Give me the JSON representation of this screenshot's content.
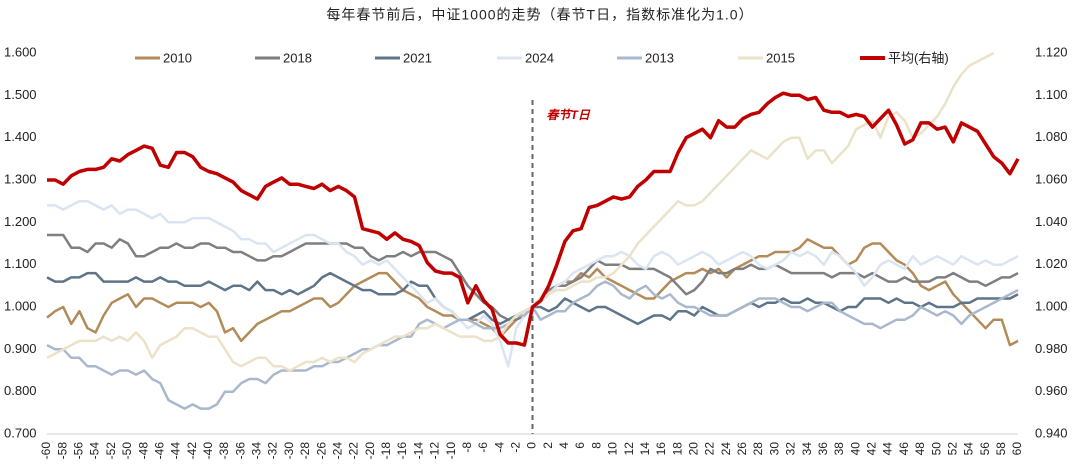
{
  "chart_data": {
    "type": "line",
    "title": "每年春节前后，中证1000的走势（春节T日，指数标准化为1.0）",
    "annotation": {
      "text": "春节T日",
      "x": 0
    },
    "x": [
      -60,
      -59,
      -58,
      -57,
      -56,
      -55,
      -54,
      -53,
      -52,
      -51,
      -50,
      -49,
      -48,
      -47,
      -46,
      -45,
      -44,
      -43,
      -42,
      -41,
      -40,
      -39,
      -38,
      -37,
      -36,
      -35,
      -34,
      -33,
      -32,
      -31,
      -30,
      -29,
      -28,
      -27,
      -26,
      -25,
      -24,
      -23,
      -22,
      -21,
      -20,
      -19,
      -18,
      -17,
      -16,
      -15,
      -14,
      -13,
      -12,
      -11,
      -10,
      -9,
      -8,
      -7,
      -6,
      -5,
      -4,
      -3,
      -2,
      -1,
      0,
      1,
      2,
      3,
      4,
      5,
      6,
      7,
      8,
      9,
      10,
      11,
      12,
      13,
      14,
      15,
      16,
      17,
      18,
      19,
      20,
      21,
      22,
      23,
      24,
      25,
      26,
      27,
      28,
      29,
      30,
      31,
      32,
      33,
      34,
      35,
      36,
      37,
      38,
      39,
      40,
      41,
      42,
      43,
      44,
      45,
      46,
      47,
      48,
      49,
      50,
      51,
      52,
      53,
      54,
      55,
      56,
      57,
      58,
      59,
      60
    ],
    "xlim": [
      -60,
      60
    ],
    "xticks": [
      -60,
      -58,
      -56,
      -54,
      -52,
      -50,
      -48,
      -46,
      -44,
      -42,
      -40,
      -38,
      -36,
      -34,
      -32,
      -30,
      -28,
      -26,
      -24,
      -22,
      -20,
      -18,
      -16,
      -14,
      -12,
      -10,
      -8,
      -6,
      -4,
      -2,
      0,
      2,
      4,
      6,
      8,
      10,
      12,
      14,
      16,
      18,
      20,
      22,
      24,
      26,
      28,
      30,
      32,
      34,
      36,
      38,
      40,
      42,
      44,
      46,
      48,
      50,
      52,
      54,
      56,
      58,
      60
    ],
    "ylim": [
      0.7,
      1.6
    ],
    "yticks": [
      {
        "value": 0.7,
        "label": "0.700"
      },
      {
        "value": 0.8,
        "label": "0.800"
      },
      {
        "value": 0.9,
        "label": "0.900"
      },
      {
        "value": 1.0,
        "label": "1.000"
      },
      {
        "value": 1.1,
        "label": "1.100"
      },
      {
        "value": 1.2,
        "label": "1.200"
      },
      {
        "value": 1.3,
        "label": "1.300"
      },
      {
        "value": 1.4,
        "label": "1.400"
      },
      {
        "value": 1.5,
        "label": "1.500"
      },
      {
        "value": 1.6,
        "label": "1.600"
      }
    ],
    "y2lim": [
      0.94,
      1.12
    ],
    "y2ticks": [
      {
        "value": 0.94,
        "label": "0.940"
      },
      {
        "value": 0.96,
        "label": "0.960"
      },
      {
        "value": 0.98,
        "label": "0.980"
      },
      {
        "value": 1.0,
        "label": "1.000"
      },
      {
        "value": 1.02,
        "label": "1.020"
      },
      {
        "value": 1.04,
        "label": "1.040"
      },
      {
        "value": 1.06,
        "label": "1.060"
      },
      {
        "value": 1.08,
        "label": "1.080"
      },
      {
        "value": 1.1,
        "label": "1.100"
      },
      {
        "value": 1.12,
        "label": "1.120"
      }
    ],
    "grid": false,
    "legend": "top",
    "series": [
      {
        "name": "2010",
        "color": "#b38b59",
        "values": [
          0.975,
          0.99,
          1.0,
          0.96,
          0.99,
          0.95,
          0.94,
          0.98,
          1.01,
          1.02,
          1.03,
          1.0,
          1.02,
          1.02,
          1.01,
          1.0,
          1.01,
          1.01,
          1.01,
          1.0,
          1.01,
          0.99,
          0.94,
          0.95,
          0.92,
          0.94,
          0.96,
          0.97,
          0.98,
          0.99,
          0.99,
          1.0,
          1.01,
          1.02,
          1.02,
          1.0,
          1.01,
          1.03,
          1.05,
          1.06,
          1.07,
          1.08,
          1.08,
          1.06,
          1.04,
          1.03,
          1.02,
          1.0,
          0.99,
          0.98,
          0.98,
          0.97,
          0.97,
          0.97,
          0.96,
          0.95,
          0.93,
          0.95,
          0.97,
          0.98,
          1.0,
          1.02,
          1.03,
          1.05,
          1.06,
          1.06,
          1.08,
          1.07,
          1.09,
          1.07,
          1.06,
          1.05,
          1.04,
          1.03,
          1.02,
          1.02,
          1.04,
          1.06,
          1.07,
          1.08,
          1.08,
          1.09,
          1.08,
          1.09,
          1.07,
          1.09,
          1.1,
          1.11,
          1.12,
          1.12,
          1.13,
          1.13,
          1.13,
          1.14,
          1.16,
          1.15,
          1.14,
          1.14,
          1.12,
          1.1,
          1.11,
          1.14,
          1.15,
          1.15,
          1.13,
          1.11,
          1.1,
          1.08,
          1.05,
          1.04,
          1.05,
          1.06,
          1.03,
          1.01,
          0.99,
          0.97,
          0.95,
          0.97,
          0.97,
          0.91,
          0.92
        ]
      },
      {
        "name": "2018",
        "color": "#7f7f7f",
        "values": [
          1.17,
          1.17,
          1.17,
          1.14,
          1.14,
          1.13,
          1.15,
          1.15,
          1.14,
          1.16,
          1.15,
          1.12,
          1.12,
          1.13,
          1.14,
          1.14,
          1.15,
          1.14,
          1.14,
          1.15,
          1.15,
          1.14,
          1.14,
          1.13,
          1.13,
          1.12,
          1.11,
          1.11,
          1.12,
          1.12,
          1.13,
          1.14,
          1.15,
          1.15,
          1.15,
          1.15,
          1.15,
          1.15,
          1.14,
          1.14,
          1.12,
          1.11,
          1.12,
          1.12,
          1.13,
          1.12,
          1.13,
          1.13,
          1.13,
          1.12,
          1.11,
          1.08,
          1.05,
          1.03,
          1.01,
          1.0,
          0.98,
          0.97,
          0.97,
          0.98,
          1.0,
          1.02,
          1.04,
          1.05,
          1.05,
          1.06,
          1.07,
          1.09,
          1.11,
          1.1,
          1.1,
          1.1,
          1.09,
          1.09,
          1.09,
          1.09,
          1.08,
          1.07,
          1.05,
          1.03,
          1.04,
          1.06,
          1.09,
          1.08,
          1.08,
          1.09,
          1.09,
          1.1,
          1.09,
          1.09,
          1.1,
          1.09,
          1.08,
          1.08,
          1.08,
          1.08,
          1.08,
          1.07,
          1.08,
          1.08,
          1.08,
          1.07,
          1.08,
          1.07,
          1.06,
          1.06,
          1.07,
          1.06,
          1.06,
          1.06,
          1.07,
          1.07,
          1.08,
          1.07,
          1.06,
          1.06,
          1.05,
          1.06,
          1.07,
          1.07,
          1.08
        ]
      },
      {
        "name": "2021",
        "color": "#5d7489",
        "values": [
          1.07,
          1.06,
          1.06,
          1.07,
          1.07,
          1.08,
          1.08,
          1.06,
          1.06,
          1.06,
          1.06,
          1.07,
          1.06,
          1.06,
          1.07,
          1.06,
          1.06,
          1.05,
          1.05,
          1.05,
          1.06,
          1.05,
          1.04,
          1.05,
          1.05,
          1.04,
          1.06,
          1.04,
          1.04,
          1.03,
          1.04,
          1.03,
          1.04,
          1.05,
          1.07,
          1.08,
          1.07,
          1.06,
          1.05,
          1.04,
          1.04,
          1.03,
          1.03,
          1.03,
          1.04,
          1.06,
          1.05,
          1.05,
          1.02,
          1.0,
          0.99,
          0.97,
          0.97,
          0.98,
          0.99,
          0.97,
          0.96,
          0.97,
          0.98,
          0.99,
          1.0,
          1.0,
          0.99,
          1.0,
          1.02,
          1.01,
          1.0,
          0.99,
          1.0,
          1.0,
          0.99,
          0.98,
          0.97,
          0.96,
          0.97,
          0.98,
          0.98,
          0.97,
          0.99,
          0.99,
          0.98,
          1.0,
          0.99,
          0.98,
          0.98,
          0.99,
          1.0,
          1.01,
          1.0,
          1.01,
          1.01,
          1.02,
          1.01,
          1.01,
          1.02,
          1.01,
          1.01,
          1.0,
          0.99,
          1.0,
          1.0,
          1.02,
          1.02,
          1.02,
          1.01,
          1.02,
          1.01,
          1.01,
          1.0,
          1.01,
          1.0,
          1.0,
          1.0,
          1.01,
          1.01,
          1.02,
          1.02,
          1.02,
          1.02,
          1.02,
          1.03
        ]
      },
      {
        "name": "2024",
        "color": "#dbe5f2",
        "values": [
          1.24,
          1.24,
          1.23,
          1.24,
          1.25,
          1.25,
          1.24,
          1.23,
          1.24,
          1.22,
          1.23,
          1.23,
          1.22,
          1.21,
          1.22,
          1.2,
          1.2,
          1.2,
          1.21,
          1.21,
          1.21,
          1.2,
          1.19,
          1.18,
          1.16,
          1.16,
          1.15,
          1.15,
          1.13,
          1.14,
          1.15,
          1.16,
          1.17,
          1.17,
          1.16,
          1.15,
          1.15,
          1.13,
          1.12,
          1.1,
          1.11,
          1.1,
          1.11,
          1.09,
          1.07,
          1.05,
          1.03,
          1.01,
          1.02,
          1.0,
          0.99,
          0.97,
          0.95,
          0.96,
          0.98,
          0.96,
          0.92,
          0.86,
          0.95,
          0.98,
          1.0,
          1.01,
          1.03,
          1.05,
          1.06,
          1.08,
          1.09,
          1.1,
          1.11,
          1.12,
          1.12,
          1.13,
          1.12,
          1.1,
          1.09,
          1.12,
          1.13,
          1.12,
          1.1,
          1.11,
          1.12,
          1.13,
          1.12,
          1.1,
          1.11,
          1.12,
          1.13,
          1.12,
          1.1,
          1.09,
          1.1,
          1.11,
          1.13,
          1.12,
          1.13,
          1.12,
          1.1,
          1.13,
          1.12,
          1.1,
          1.08,
          1.05,
          1.07,
          1.1,
          1.11,
          1.1,
          1.09,
          1.12,
          1.1,
          1.11,
          1.12,
          1.11,
          1.1,
          1.12,
          1.11,
          1.1,
          1.11,
          1.1,
          1.1,
          1.11,
          1.12
        ]
      },
      {
        "name": "2013",
        "color": "#a9b8cc",
        "values": [
          0.91,
          0.9,
          0.9,
          0.88,
          0.88,
          0.86,
          0.86,
          0.85,
          0.84,
          0.85,
          0.85,
          0.84,
          0.85,
          0.83,
          0.82,
          0.78,
          0.77,
          0.76,
          0.77,
          0.76,
          0.76,
          0.77,
          0.8,
          0.8,
          0.82,
          0.83,
          0.83,
          0.82,
          0.84,
          0.85,
          0.85,
          0.85,
          0.85,
          0.86,
          0.86,
          0.87,
          0.87,
          0.88,
          0.89,
          0.9,
          0.9,
          0.91,
          0.91,
          0.92,
          0.93,
          0.93,
          0.96,
          0.97,
          0.96,
          0.95,
          0.96,
          0.97,
          0.97,
          0.96,
          0.95,
          0.95,
          0.95,
          0.96,
          0.98,
          0.98,
          1.0,
          0.97,
          0.98,
          0.99,
          0.99,
          1.01,
          1.02,
          1.03,
          1.05,
          1.06,
          1.05,
          1.03,
          1.02,
          1.04,
          1.05,
          1.03,
          1.02,
          1.03,
          1.01,
          1.0,
          1.0,
          0.99,
          0.98,
          0.98,
          0.98,
          0.99,
          1.0,
          1.01,
          1.02,
          1.02,
          1.02,
          1.01,
          1.0,
          1.0,
          0.99,
          1.0,
          1.01,
          1.01,
          0.99,
          0.98,
          0.97,
          0.96,
          0.96,
          0.95,
          0.96,
          0.97,
          0.97,
          0.98,
          1.0,
          0.99,
          0.98,
          0.99,
          0.98,
          0.96,
          0.98,
          0.99,
          1.0,
          1.01,
          1.02,
          1.03,
          1.04
        ]
      },
      {
        "name": "2015",
        "color": "#ece2c9",
        "values": [
          0.88,
          0.89,
          0.9,
          0.91,
          0.92,
          0.92,
          0.92,
          0.93,
          0.92,
          0.93,
          0.92,
          0.94,
          0.92,
          0.88,
          0.91,
          0.92,
          0.93,
          0.95,
          0.95,
          0.94,
          0.93,
          0.93,
          0.9,
          0.87,
          0.86,
          0.87,
          0.88,
          0.88,
          0.86,
          0.86,
          0.85,
          0.86,
          0.87,
          0.87,
          0.88,
          0.87,
          0.88,
          0.88,
          0.87,
          0.89,
          0.9,
          0.91,
          0.92,
          0.93,
          0.93,
          0.94,
          0.95,
          0.95,
          0.96,
          0.95,
          0.94,
          0.93,
          0.93,
          0.93,
          0.92,
          0.92,
          0.93,
          0.96,
          0.98,
          0.99,
          1.0,
          1.02,
          1.03,
          1.04,
          1.04,
          1.05,
          1.06,
          1.06,
          1.07,
          1.07,
          1.08,
          1.1,
          1.12,
          1.15,
          1.17,
          1.19,
          1.21,
          1.23,
          1.25,
          1.24,
          1.24,
          1.25,
          1.27,
          1.29,
          1.31,
          1.33,
          1.35,
          1.37,
          1.36,
          1.35,
          1.37,
          1.39,
          1.4,
          1.4,
          1.35,
          1.37,
          1.37,
          1.34,
          1.36,
          1.38,
          1.42,
          1.43,
          1.44,
          1.4,
          1.45,
          1.46,
          1.44,
          1.4,
          1.41,
          1.43,
          1.45,
          1.48,
          1.52,
          1.55,
          1.57,
          1.58,
          1.59,
          1.6,
          null,
          null,
          null
        ]
      },
      {
        "name": "平均(右轴)",
        "color": "#c00000",
        "axis": "y2",
        "values": [
          1.06,
          1.06,
          1.058,
          1.062,
          1.064,
          1.065,
          1.065,
          1.066,
          1.07,
          1.069,
          1.072,
          1.074,
          1.076,
          1.075,
          1.067,
          1.066,
          1.073,
          1.073,
          1.071,
          1.066,
          1.064,
          1.063,
          1.061,
          1.059,
          1.055,
          1.053,
          1.051,
          1.057,
          1.059,
          1.061,
          1.058,
          1.058,
          1.057,
          1.056,
          1.058,
          1.055,
          1.057,
          1.055,
          1.052,
          1.037,
          1.036,
          1.035,
          1.032,
          1.035,
          1.032,
          1.031,
          1.029,
          1.021,
          1.017,
          1.016,
          1.016,
          1.014,
          1.002,
          1.01,
          1.003,
          0.999,
          0.987,
          0.983,
          0.983,
          0.982,
          1.0,
          1.003,
          1.01,
          1.02,
          1.031,
          1.036,
          1.037,
          1.047,
          1.048,
          1.05,
          1.052,
          1.051,
          1.052,
          1.057,
          1.06,
          1.064,
          1.064,
          1.064,
          1.073,
          1.08,
          1.082,
          1.084,
          1.08,
          1.088,
          1.085,
          1.085,
          1.089,
          1.091,
          1.092,
          1.096,
          1.099,
          1.101,
          1.1,
          1.1,
          1.098,
          1.099,
          1.093,
          1.092,
          1.092,
          1.09,
          1.091,
          1.09,
          1.085,
          1.089,
          1.093,
          1.086,
          1.077,
          1.079,
          1.087,
          1.087,
          1.084,
          1.085,
          1.078,
          1.087,
          1.085,
          1.083,
          1.077,
          1.071,
          1.068,
          1.063,
          1.07
        ]
      }
    ]
  }
}
